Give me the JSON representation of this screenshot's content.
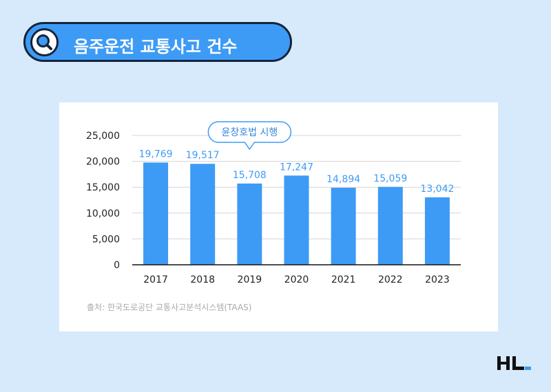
{
  "header": {
    "title": "음주운전 교통사고 건수",
    "icon": "search-icon",
    "accent_color": "#3d9bf5",
    "border_color": "#15233a"
  },
  "chart_data": {
    "type": "bar",
    "categories": [
      "2017",
      "2018",
      "2019",
      "2020",
      "2021",
      "2022",
      "2023"
    ],
    "values": [
      19769,
      19517,
      15708,
      17247,
      14894,
      15059,
      13042
    ],
    "value_labels": [
      "19,769",
      "19,517",
      "15,708",
      "17,247",
      "14,894",
      "15,059",
      "13,042"
    ],
    "ylim": [
      0,
      25000
    ],
    "yticks": [
      0,
      5000,
      10000,
      15000,
      20000,
      25000
    ],
    "ytick_labels": [
      "0",
      "5,000",
      "10,000",
      "15,000",
      "20,000",
      "25,000"
    ],
    "grid": true,
    "bar_color": "#3d9bf5",
    "label_color": "#3d9bf5",
    "annotation": {
      "text": "윤창호법 시행",
      "category": "2019"
    }
  },
  "footer": {
    "source": "출처: 한국도로공단 교통사고분석시스템(TAAS)",
    "logo": "HL"
  }
}
